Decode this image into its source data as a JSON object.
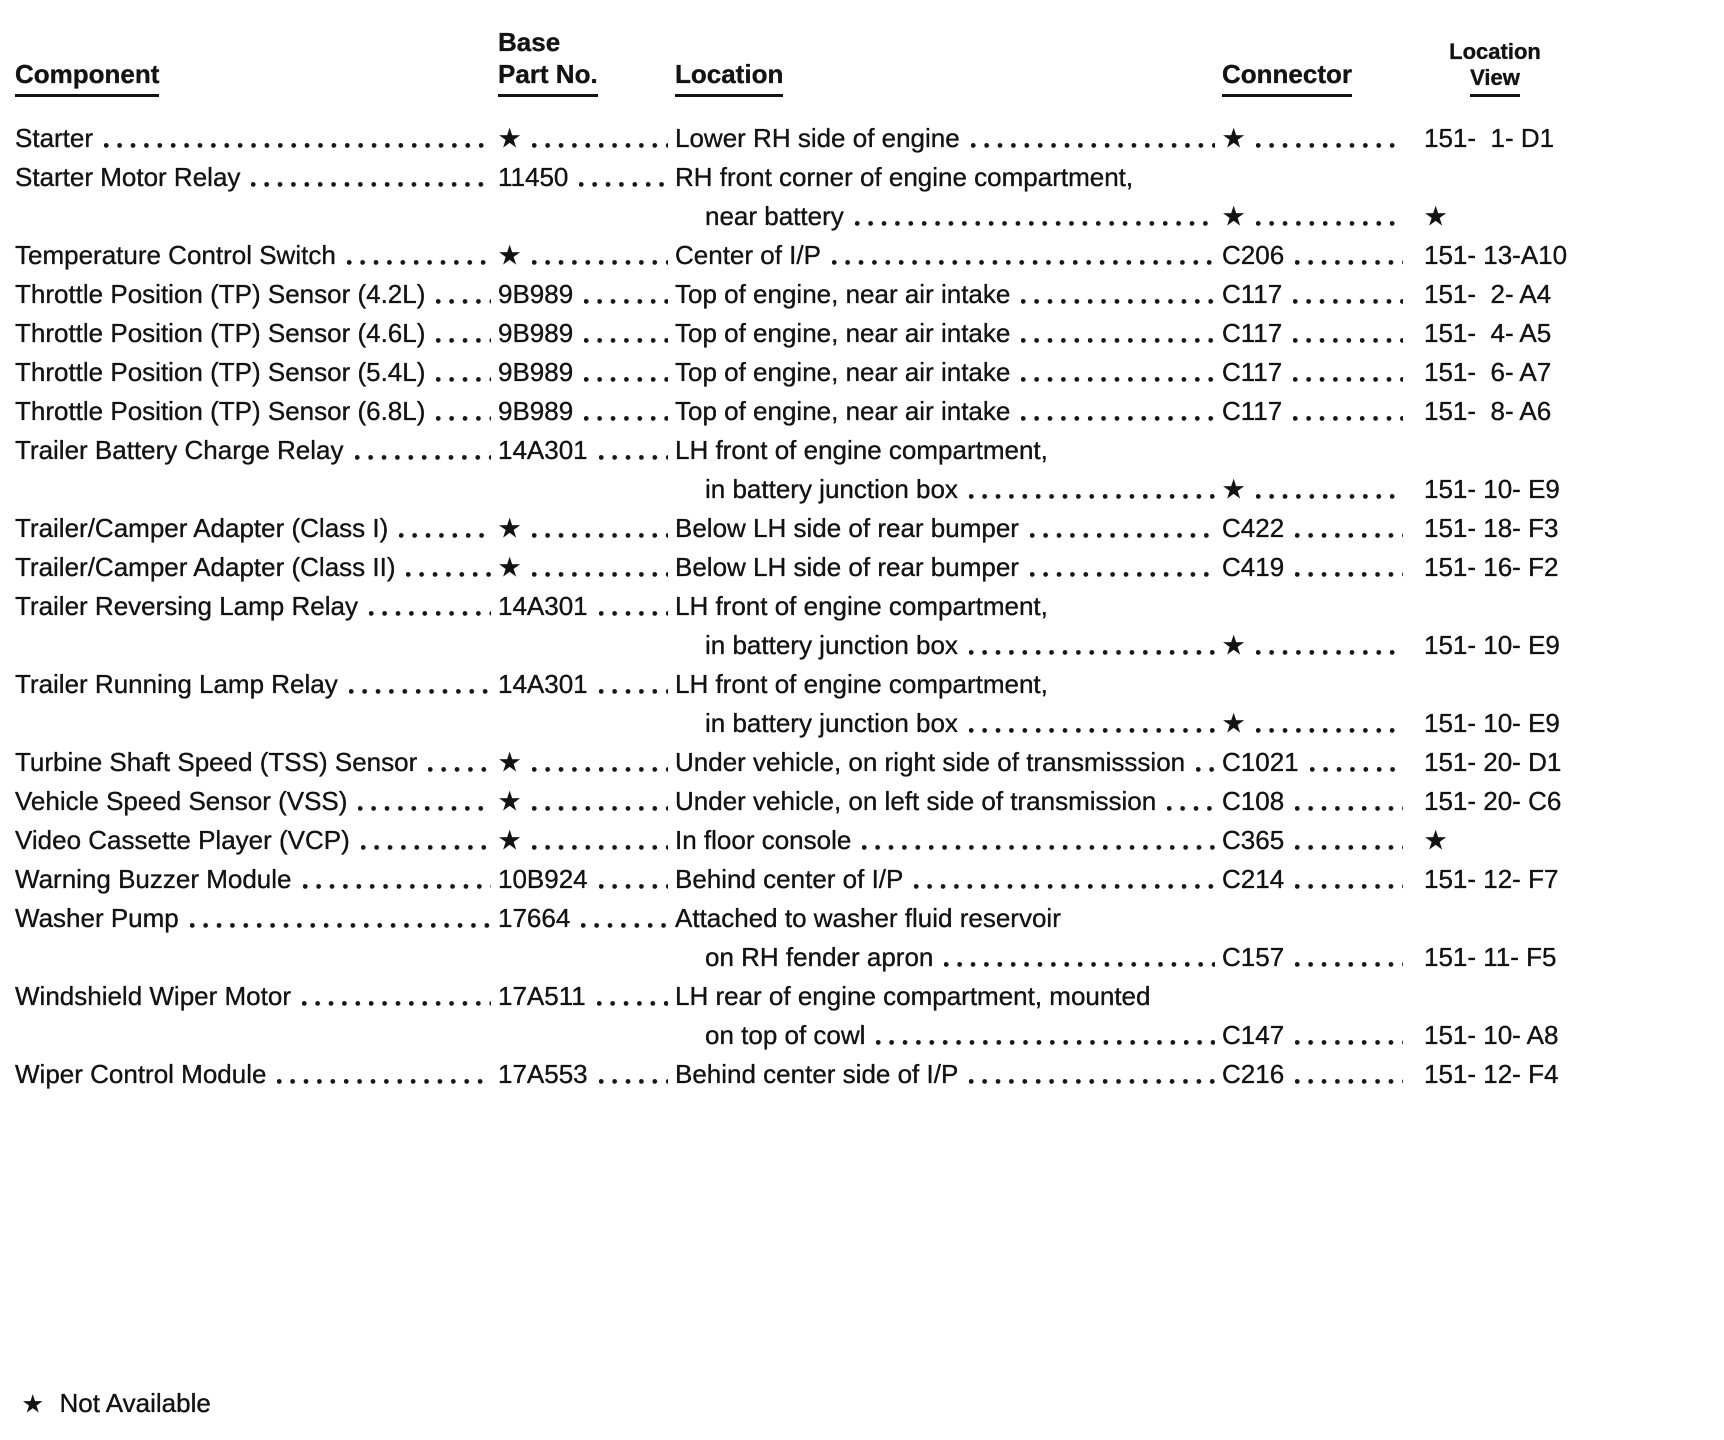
{
  "page": {
    "paper": "#ffffff",
    "ink": "#131313"
  },
  "table": {
    "headers": {
      "component": "Component",
      "base": "Base",
      "part_no": "Part No.",
      "location": "Location",
      "connector": "Connector",
      "location_view_line1": "Location",
      "location_view_line2": "View"
    },
    "not_available_symbol": "★",
    "rows": [
      {
        "component": "Starter",
        "part_no": "★",
        "location": "Lower RH side of engine",
        "location_dots": true,
        "connector": "★",
        "view": "151-  1- D1",
        "continuation": false
      },
      {
        "component": "Starter Motor Relay",
        "part_no": "11450",
        "location": "RH front corner of engine compartment,",
        "location_dots": false,
        "connector": "",
        "view": "",
        "continuation": false
      },
      {
        "component": "",
        "part_no": "",
        "location": "near battery",
        "location_dots": true,
        "connector": "★",
        "view": "★",
        "continuation": true
      },
      {
        "component": "Temperature Control Switch",
        "part_no": "★",
        "location": "Center of I/P",
        "location_dots": true,
        "connector": "C206",
        "view": "151- 13-A10",
        "continuation": false
      },
      {
        "component": "Throttle Position (TP) Sensor (4.2L)",
        "part_no": "9B989",
        "location": "Top of engine, near air intake",
        "location_dots": true,
        "connector": "C117",
        "view": "151-  2- A4",
        "continuation": false
      },
      {
        "component": "Throttle Position (TP) Sensor (4.6L)",
        "part_no": "9B989",
        "location": "Top of engine, near air intake",
        "location_dots": true,
        "connector": "C117",
        "view": "151-  4- A5",
        "continuation": false
      },
      {
        "component": "Throttle Position (TP) Sensor (5.4L)",
        "part_no": "9B989",
        "location": "Top of engine, near air intake",
        "location_dots": true,
        "connector": "C117",
        "view": "151-  6- A7",
        "continuation": false
      },
      {
        "component": "Throttle Position (TP) Sensor (6.8L)",
        "part_no": "9B989",
        "location": "Top of engine, near air intake",
        "location_dots": true,
        "connector": "C117",
        "view": "151-  8- A6",
        "continuation": false
      },
      {
        "component": "Trailer Battery Charge Relay",
        "part_no": "14A301",
        "location": "LH front of engine compartment,",
        "location_dots": false,
        "connector": "",
        "view": "",
        "continuation": false
      },
      {
        "component": "",
        "part_no": "",
        "location": "in battery junction box",
        "location_dots": true,
        "connector": "★",
        "view": "151- 10- E9",
        "continuation": true
      },
      {
        "component": "Trailer/Camper Adapter (Class I)",
        "part_no": "★",
        "location": "Below LH side of rear bumper",
        "location_dots": true,
        "connector": "C422",
        "view": "151- 18- F3",
        "continuation": false
      },
      {
        "component": "Trailer/Camper Adapter (Class II)",
        "part_no": "★",
        "location": "Below LH side of rear bumper",
        "location_dots": true,
        "connector": "C419",
        "view": "151- 16- F2",
        "continuation": false
      },
      {
        "component": "Trailer Reversing Lamp Relay",
        "part_no": "14A301",
        "location": "LH front of engine compartment,",
        "location_dots": false,
        "connector": "",
        "view": "",
        "continuation": false
      },
      {
        "component": "",
        "part_no": "",
        "location": "in battery junction box",
        "location_dots": true,
        "connector": "★",
        "view": "151- 10- E9",
        "continuation": true
      },
      {
        "component": "Trailer Running Lamp Relay",
        "part_no": "14A301",
        "location": "LH front of engine compartment,",
        "location_dots": false,
        "connector": "",
        "view": "",
        "continuation": false
      },
      {
        "component": "",
        "part_no": "",
        "location": "in battery junction box",
        "location_dots": true,
        "connector": "★",
        "view": "151- 10- E9",
        "continuation": true
      },
      {
        "component": "Turbine Shaft Speed (TSS) Sensor",
        "part_no": "★",
        "location": "Under vehicle, on right side of transmisssion",
        "location_dots": true,
        "connector": "C1021",
        "view": "151- 20- D1",
        "continuation": false
      },
      {
        "component": "Vehicle Speed Sensor (VSS)",
        "part_no": "★",
        "location": "Under vehicle, on left side of transmission",
        "location_dots": true,
        "connector": "C108",
        "view": "151- 20- C6",
        "continuation": false
      },
      {
        "component": "Video Cassette Player (VCP)",
        "part_no": "★",
        "location": "In floor console",
        "location_dots": true,
        "connector": "C365",
        "view": "★",
        "continuation": false
      },
      {
        "component": "Warning Buzzer Module",
        "part_no": "10B924",
        "location": "Behind center of I/P",
        "location_dots": true,
        "connector": "C214",
        "view": "151- 12- F7",
        "continuation": false
      },
      {
        "component": "Washer Pump",
        "part_no": "17664",
        "location": "Attached to washer fluid reservoir",
        "location_dots": false,
        "connector": "",
        "view": "",
        "continuation": false
      },
      {
        "component": "",
        "part_no": "",
        "location": "on RH fender apron",
        "location_dots": true,
        "connector": "C157",
        "view": "151- 11- F5",
        "continuation": true
      },
      {
        "component": "Windshield Wiper Motor",
        "part_no": "17A511",
        "location": "LH rear of engine compartment, mounted",
        "location_dots": false,
        "connector": "",
        "view": "",
        "continuation": false
      },
      {
        "component": "",
        "part_no": "",
        "location": "on top of cowl",
        "location_dots": true,
        "connector": "C147",
        "view": "151- 10- A8",
        "continuation": true
      },
      {
        "component": "Wiper Control Module",
        "part_no": "17A553",
        "location": "Behind center side of I/P",
        "location_dots": true,
        "connector": "C216",
        "view": "151- 12- F4",
        "continuation": false
      }
    ]
  },
  "footnote": {
    "marker": "★",
    "text": "Not Available"
  }
}
